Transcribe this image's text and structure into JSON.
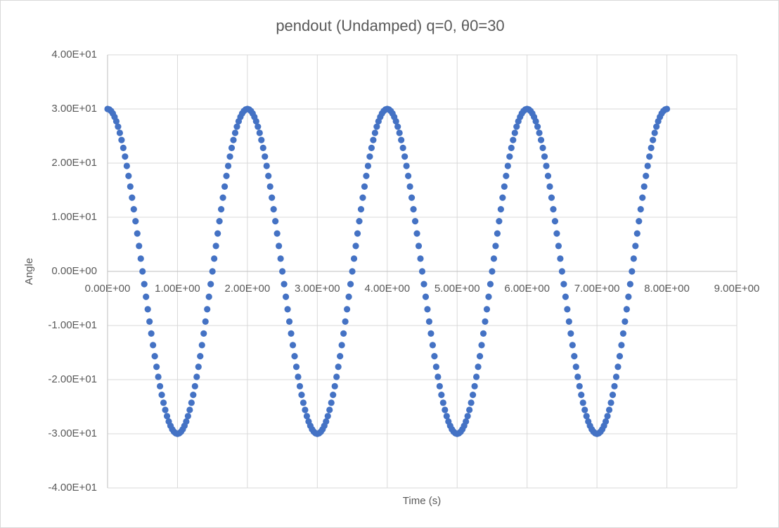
{
  "chart_data": {
    "type": "scatter",
    "title": "pendout (Undamped) q=0, θ0=30",
    "x_label": "Time (s)",
    "y_label": "Angle",
    "xlim": [
      0,
      9
    ],
    "ylim": [
      -40,
      40
    ],
    "grid": true,
    "color": "#4472c4",
    "xticks": [
      {
        "value": 0,
        "label": "0.00E+00"
      },
      {
        "value": 1,
        "label": "1.00E+00"
      },
      {
        "value": 2,
        "label": "2.00E+00"
      },
      {
        "value": 3,
        "label": "3.00E+00"
      },
      {
        "value": 4,
        "label": "4.00E+00"
      },
      {
        "value": 5,
        "label": "5.00E+00"
      },
      {
        "value": 6,
        "label": "6.00E+00"
      },
      {
        "value": 7,
        "label": "7.00E+00"
      },
      {
        "value": 8,
        "label": "8.00E+00"
      },
      {
        "value": 9,
        "label": "9.00E+00"
      }
    ],
    "yticks": [
      {
        "value": -40,
        "label": "-4.00E+01"
      },
      {
        "value": -30,
        "label": "-3.00E+01"
      },
      {
        "value": -20,
        "label": "-2.00E+01"
      },
      {
        "value": -10,
        "label": "-1.00E+01"
      },
      {
        "value": 0,
        "label": "0.00E+00"
      },
      {
        "value": 10,
        "label": "1.00E+01"
      },
      {
        "value": 20,
        "label": "2.00E+01"
      },
      {
        "value": 30,
        "label": "3.00E+01"
      },
      {
        "value": 40,
        "label": "4.00E+01"
      }
    ],
    "x": [
      0,
      0.025,
      0.05,
      0.075,
      0.1,
      0.125,
      0.15,
      0.175,
      0.2,
      0.225,
      0.25,
      0.275,
      0.3,
      0.325,
      0.35,
      0.375,
      0.4,
      0.425,
      0.45,
      0.475,
      0.5,
      0.525,
      0.55,
      0.575,
      0.6,
      0.625,
      0.65,
      0.675,
      0.7,
      0.725,
      0.75,
      0.775,
      0.8,
      0.825,
      0.85,
      0.875,
      0.9,
      0.925,
      0.95,
      0.975,
      1,
      1.025,
      1.05,
      1.075,
      1.1,
      1.125,
      1.15,
      1.175,
      1.2,
      1.225,
      1.25,
      1.275,
      1.3,
      1.325,
      1.35,
      1.375,
      1.4,
      1.425,
      1.45,
      1.475,
      1.5,
      1.525,
      1.55,
      1.575,
      1.6,
      1.625,
      1.65,
      1.675,
      1.7,
      1.725,
      1.75,
      1.775,
      1.8,
      1.825,
      1.85,
      1.875,
      1.9,
      1.925,
      1.95,
      1.975,
      2,
      2.025,
      2.05,
      2.075,
      2.1,
      2.125,
      2.15,
      2.175,
      2.2,
      2.225,
      2.25,
      2.275,
      2.3,
      2.325,
      2.35,
      2.375,
      2.4,
      2.425,
      2.45,
      2.475,
      2.5,
      2.525,
      2.55,
      2.575,
      2.6,
      2.625,
      2.65,
      2.675,
      2.7,
      2.725,
      2.75,
      2.775,
      2.8,
      2.825,
      2.85,
      2.875,
      2.9,
      2.925,
      2.95,
      2.975,
      3,
      3.025,
      3.05,
      3.075,
      3.1,
      3.125,
      3.15,
      3.175,
      3.2,
      3.225,
      3.25,
      3.275,
      3.3,
      3.325,
      3.35,
      3.375,
      3.4,
      3.425,
      3.45,
      3.475,
      3.5,
      3.525,
      3.55,
      3.575,
      3.6,
      3.625,
      3.65,
      3.675,
      3.7,
      3.725,
      3.75,
      3.775,
      3.8,
      3.825,
      3.85,
      3.875,
      3.9,
      3.925,
      3.95,
      3.975,
      4,
      4.025,
      4.05,
      4.075,
      4.1,
      4.125,
      4.15,
      4.175,
      4.2,
      4.225,
      4.25,
      4.275,
      4.3,
      4.325,
      4.35,
      4.375,
      4.4,
      4.425,
      4.45,
      4.475,
      4.5,
      4.525,
      4.55,
      4.575,
      4.6,
      4.625,
      4.65,
      4.675,
      4.7,
      4.725,
      4.75,
      4.775,
      4.8,
      4.825,
      4.85,
      4.875,
      4.9,
      4.925,
      4.95,
      4.975,
      5,
      5.025,
      5.05,
      5.075,
      5.1,
      5.125,
      5.15,
      5.175,
      5.2,
      5.225,
      5.25,
      5.275,
      5.3,
      5.325,
      5.35,
      5.375,
      5.4,
      5.425,
      5.45,
      5.475,
      5.5,
      5.525,
      5.55,
      5.575,
      5.6,
      5.625,
      5.65,
      5.675,
      5.7,
      5.725,
      5.75,
      5.775,
      5.8,
      5.825,
      5.85,
      5.875,
      5.9,
      5.925,
      5.95,
      5.975,
      6,
      6.025,
      6.05,
      6.075,
      6.1,
      6.125,
      6.15,
      6.175,
      6.2,
      6.225,
      6.25,
      6.275,
      6.3,
      6.325,
      6.35,
      6.375,
      6.4,
      6.425,
      6.45,
      6.475,
      6.5,
      6.525,
      6.55,
      6.575,
      6.6,
      6.625,
      6.65,
      6.675,
      6.7,
      6.725,
      6.75,
      6.775,
      6.8,
      6.825,
      6.85,
      6.875,
      6.9,
      6.925,
      6.95,
      6.975,
      7,
      7.025,
      7.05,
      7.075,
      7.1,
      7.125,
      7.15,
      7.175,
      7.2,
      7.225,
      7.25,
      7.275,
      7.3,
      7.325,
      7.35,
      7.375,
      7.4,
      7.425,
      7.45,
      7.475,
      7.5,
      7.525,
      7.55,
      7.575,
      7.6,
      7.625,
      7.65,
      7.675,
      7.7,
      7.725,
      7.75,
      7.775,
      7.8,
      7.825,
      7.85,
      7.875,
      7.9,
      7.925,
      7.95,
      7.975,
      8
    ],
    "values": [
      30,
      29.91,
      29.63,
      29.17,
      28.53,
      27.72,
      26.73,
      25.58,
      24.27,
      22.81,
      21.21,
      19.48,
      17.63,
      15.67,
      13.62,
      11.48,
      9.27,
      7,
      4.69,
      2.35,
      0,
      -2.35,
      -4.69,
      -7,
      -9.27,
      -11.48,
      -13.62,
      -15.67,
      -17.63,
      -19.48,
      -21.21,
      -22.81,
      -24.27,
      -25.58,
      -26.73,
      -27.72,
      -28.53,
      -29.17,
      -29.63,
      -29.91,
      -30,
      -29.91,
      -29.63,
      -29.17,
      -28.53,
      -27.72,
      -26.73,
      -25.58,
      -24.27,
      -22.81,
      -21.21,
      -19.48,
      -17.63,
      -15.67,
      -13.62,
      -11.48,
      -9.27,
      -7,
      -4.69,
      -2.35,
      0,
      2.35,
      4.69,
      7,
      9.27,
      11.48,
      13.62,
      15.67,
      17.63,
      19.48,
      21.21,
      22.81,
      24.27,
      25.58,
      26.73,
      27.72,
      28.53,
      29.17,
      29.63,
      29.91,
      30,
      29.91,
      29.63,
      29.17,
      28.53,
      27.72,
      26.73,
      25.58,
      24.27,
      22.81,
      21.21,
      19.48,
      17.63,
      15.67,
      13.62,
      11.48,
      9.27,
      7,
      4.69,
      2.35,
      0,
      -2.35,
      -4.69,
      -7,
      -9.27,
      -11.48,
      -13.62,
      -15.67,
      -17.63,
      -19.48,
      -21.21,
      -22.81,
      -24.27,
      -25.58,
      -26.73,
      -27.72,
      -28.53,
      -29.17,
      -29.63,
      -29.91,
      -30,
      -29.91,
      -29.63,
      -29.17,
      -28.53,
      -27.72,
      -26.73,
      -25.58,
      -24.27,
      -22.81,
      -21.21,
      -19.48,
      -17.63,
      -15.67,
      -13.62,
      -11.48,
      -9.27,
      -7,
      -4.69,
      -2.35,
      0,
      2.35,
      4.69,
      7,
      9.27,
      11.48,
      13.62,
      15.67,
      17.63,
      19.48,
      21.21,
      22.81,
      24.27,
      25.58,
      26.73,
      27.72,
      28.53,
      29.17,
      29.63,
      29.91,
      30,
      29.91,
      29.63,
      29.17,
      28.53,
      27.72,
      26.73,
      25.58,
      24.27,
      22.81,
      21.21,
      19.48,
      17.63,
      15.67,
      13.62,
      11.48,
      9.27,
      7,
      4.69,
      2.35,
      0,
      -2.35,
      -4.69,
      -7,
      -9.27,
      -11.48,
      -13.62,
      -15.67,
      -17.63,
      -19.48,
      -21.21,
      -22.81,
      -24.27,
      -25.58,
      -26.73,
      -27.72,
      -28.53,
      -29.17,
      -29.63,
      -29.91,
      -30,
      -29.91,
      -29.63,
      -29.17,
      -28.53,
      -27.72,
      -26.73,
      -25.58,
      -24.27,
      -22.81,
      -21.21,
      -19.48,
      -17.63,
      -15.67,
      -13.62,
      -11.48,
      -9.27,
      -7,
      -4.69,
      -2.35,
      0,
      2.35,
      4.69,
      7,
      9.27,
      11.48,
      13.62,
      15.67,
      17.63,
      19.48,
      21.21,
      22.81,
      24.27,
      25.58,
      26.73,
      27.72,
      28.53,
      29.17,
      29.63,
      29.91,
      30,
      29.91,
      29.63,
      29.17,
      28.53,
      27.72,
      26.73,
      25.58,
      24.27,
      22.81,
      21.21,
      19.48,
      17.63,
      15.67,
      13.62,
      11.48,
      9.27,
      7,
      4.69,
      2.35,
      0,
      -2.35,
      -4.69,
      -7,
      -9.27,
      -11.48,
      -13.62,
      -15.67,
      -17.63,
      -19.48,
      -21.21,
      -22.81,
      -24.27,
      -25.58,
      -26.73,
      -27.72,
      -28.53,
      -29.17,
      -29.63,
      -29.91,
      -30,
      -29.91,
      -29.63,
      -29.17,
      -28.53,
      -27.72,
      -26.73,
      -25.58,
      -24.27,
      -22.81,
      -21.21,
      -19.48,
      -17.63,
      -15.67,
      -13.62,
      -11.48,
      -9.27,
      -7,
      -4.69,
      -2.35,
      0,
      2.35,
      4.69,
      7,
      9.27,
      11.48,
      13.62,
      15.67,
      17.63,
      19.48,
      21.21,
      22.81,
      24.27,
      25.58,
      26.73,
      27.72,
      28.53,
      29.17,
      29.63,
      29.91,
      30
    ]
  }
}
